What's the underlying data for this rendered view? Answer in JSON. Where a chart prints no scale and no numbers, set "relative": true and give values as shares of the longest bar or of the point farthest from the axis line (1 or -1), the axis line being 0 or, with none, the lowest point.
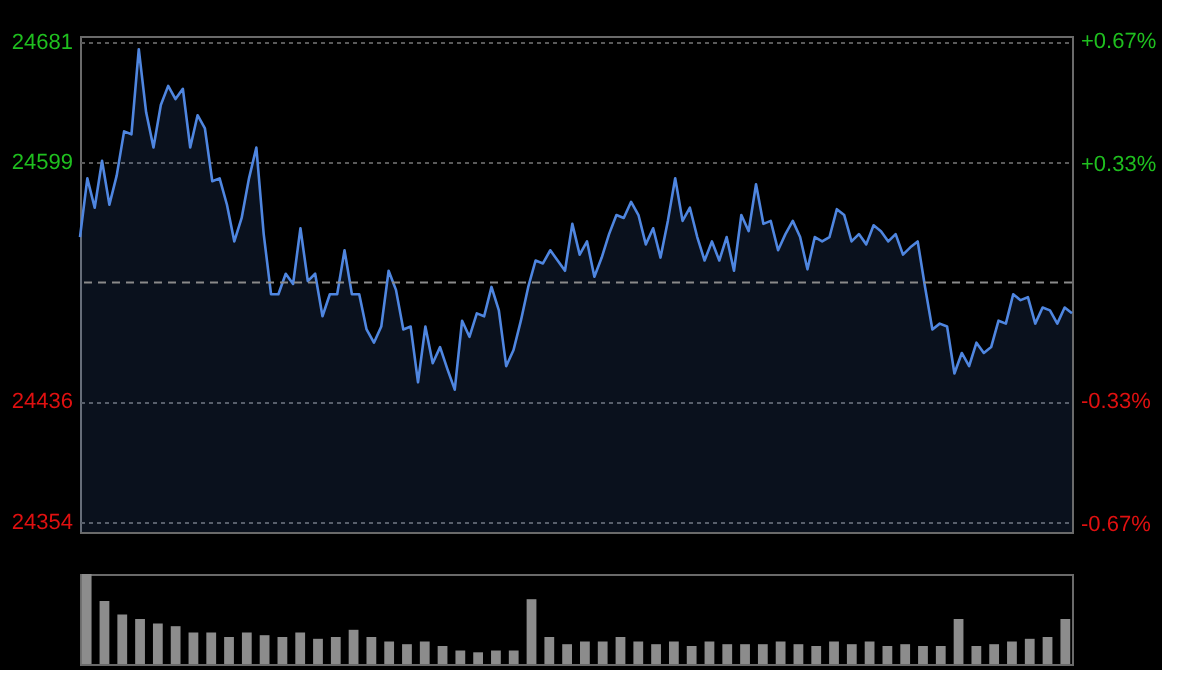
{
  "chart_data": [
    {
      "type": "area",
      "tick_labels": "y",
      "grid": "y",
      "categories": [
        null,
        null,
        null,
        null,
        null,
        null,
        null,
        null,
        null,
        null,
        null,
        null,
        null,
        null,
        null,
        null,
        null,
        null,
        null,
        null,
        null,
        null,
        null,
        null,
        null,
        null,
        null,
        null,
        null,
        null,
        null,
        null,
        null,
        null,
        null,
        null,
        null,
        null,
        null,
        null,
        null,
        null,
        null,
        null,
        null,
        null,
        null,
        null,
        null,
        null,
        null,
        null,
        null,
        null,
        null,
        null,
        null,
        null,
        null,
        null,
        null,
        null,
        null,
        null,
        null,
        null,
        null,
        null,
        null,
        null,
        null,
        null,
        null,
        null,
        null,
        null,
        null,
        null,
        null,
        null,
        null,
        null,
        null,
        null,
        null,
        null,
        null,
        null,
        null,
        null,
        null,
        null,
        null,
        null,
        null,
        null,
        null,
        null,
        null,
        null,
        null,
        null,
        null,
        null,
        null,
        null,
        null,
        null,
        null,
        null,
        null,
        null,
        null,
        null,
        null,
        null,
        null,
        null,
        null,
        null,
        null,
        null,
        null,
        null,
        null,
        null,
        null,
        null,
        null,
        null,
        null,
        null,
        null,
        null,
        null,
        null
      ],
      "ylim": [
        24347,
        24685
      ],
      "yticks": [
        24354,
        24436,
        24599,
        24681
      ],
      "y2lim": [
        -0.693,
        0.685
      ],
      "y2ticks": [
        {
          "value": 0.67,
          "label": "+0.67%"
        },
        {
          "value": 0.33,
          "label": "+0.33%"
        },
        {
          "value": -0.33,
          "label": "-0.33%"
        },
        {
          "value": -0.67,
          "label": "-0.67%"
        }
      ],
      "ref_lines": [
        {
          "axis": "y",
          "value": 24517,
          "line_style": "dashed",
          "color": "#8a8a8a"
        }
      ],
      "series": [
        {
          "color": "#4f86e0",
          "values": [
            24548,
            24588,
            24568,
            24600,
            24570,
            24590,
            24620,
            24618,
            24676,
            24633,
            24609,
            24638,
            24651,
            24642,
            24649,
            24609,
            24631,
            24622,
            24586,
            24588,
            24570,
            24545,
            24561,
            24588,
            24609,
            24550,
            24509,
            24509,
            24523,
            24516,
            24554,
            24518,
            24523,
            24494,
            24509,
            24509,
            24539,
            24509,
            24509,
            24485,
            24476,
            24487,
            24525,
            24512,
            24485,
            24487,
            24449,
            24487,
            24462,
            24473,
            24458,
            24444,
            24491,
            24480,
            24496,
            24494,
            24514,
            24498,
            24460,
            24471,
            24491,
            24514,
            24532,
            24530,
            24539,
            24532,
            24525,
            24557,
            24536,
            24545,
            24521,
            24534,
            24550,
            24563,
            24561,
            24572,
            24563,
            24543,
            24554,
            24534,
            24559,
            24588,
            24559,
            24568,
            24548,
            24532,
            24545,
            24532,
            24548,
            24525,
            24563,
            24552,
            24584,
            24557,
            24559,
            24539,
            24550,
            24559,
            24548,
            24526,
            24548,
            24545,
            24548,
            24567,
            24563,
            24545,
            24550,
            24543,
            24556,
            24552,
            24545,
            24550,
            24536,
            24541,
            24545,
            24514,
            24485,
            24489,
            24487,
            24455,
            24469,
            24460,
            24476,
            24469,
            24473,
            24491,
            24489,
            24509,
            24505,
            24507,
            24489,
            24500,
            24498,
            24489,
            24500,
            24496
          ]
        }
      ]
    },
    {
      "type": "bar",
      "relative": true,
      "tick_labels": false,
      "categories": [
        null,
        null,
        null,
        null,
        null,
        null,
        null,
        null,
        null,
        null,
        null,
        null,
        null,
        null,
        null,
        null,
        null,
        null,
        null,
        null,
        null,
        null,
        null,
        null,
        null,
        null,
        null,
        null,
        null,
        null,
        null,
        null,
        null,
        null,
        null,
        null,
        null,
        null,
        null,
        null,
        null,
        null,
        null,
        null,
        null,
        null,
        null,
        null,
        null,
        null,
        null,
        null,
        null,
        null,
        null,
        null
      ],
      "series": [
        {
          "color": "#8c8c8c",
          "values": [
            1.0,
            0.7,
            0.55,
            0.5,
            0.45,
            0.42,
            0.35,
            0.35,
            0.3,
            0.35,
            0.32,
            0.3,
            0.35,
            0.28,
            0.3,
            0.38,
            0.3,
            0.25,
            0.22,
            0.25,
            0.2,
            0.15,
            0.13,
            0.15,
            0.15,
            0.72,
            0.3,
            0.22,
            0.25,
            0.25,
            0.3,
            0.25,
            0.22,
            0.25,
            0.2,
            0.25,
            0.22,
            0.22,
            0.22,
            0.25,
            0.22,
            0.2,
            0.25,
            0.22,
            0.25,
            0.2,
            0.22,
            0.2,
            0.2,
            0.5,
            0.2,
            0.22,
            0.25,
            0.28,
            0.3,
            0.5
          ]
        }
      ]
    }
  ]
}
